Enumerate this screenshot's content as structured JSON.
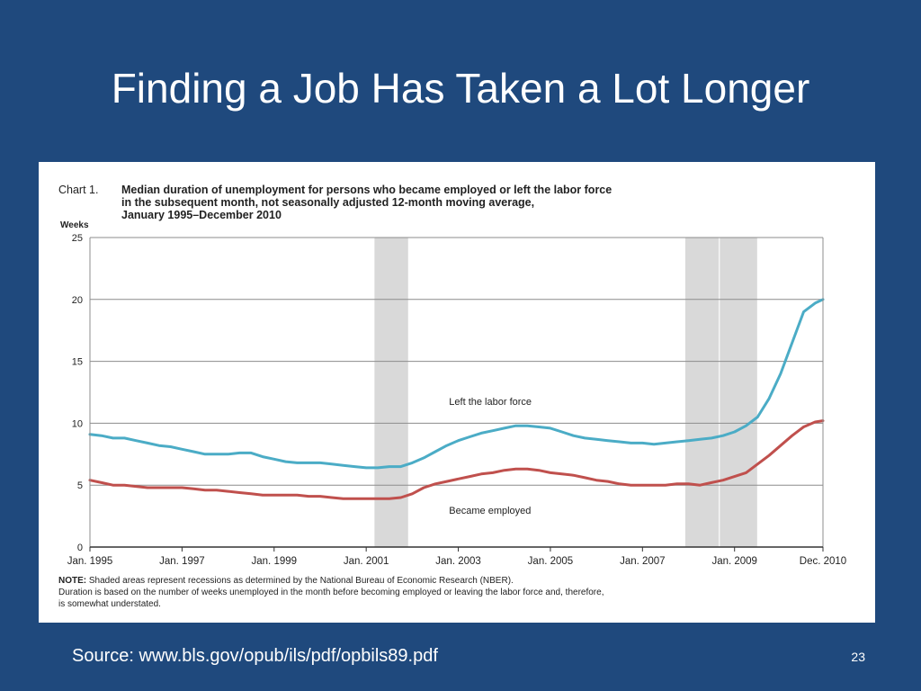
{
  "slide": {
    "title": "Finding a Job Has Taken a Lot Longer",
    "source": "Source: www.bls.gov/opub/ils/pdf/opbils89.pdf",
    "page_number": "23"
  },
  "chart_data": {
    "type": "line",
    "chart_label": "Chart 1.",
    "title_lines": [
      "Median duration of unemployment for persons who became employed or left the labor force",
      "in the subsequent month, not seasonally adjusted 12-month moving average,",
      "January 1995–December 2010"
    ],
    "ylabel": "Weeks",
    "ylim": [
      0,
      25
    ],
    "yticks": [
      0,
      5,
      10,
      15,
      20,
      25
    ],
    "xlim": [
      1995.0,
      2010.92
    ],
    "xticks": [
      {
        "value": 1995.0,
        "label": "Jan. 1995"
      },
      {
        "value": 1997.0,
        "label": "Jan. 1997"
      },
      {
        "value": 1999.0,
        "label": "Jan. 1999"
      },
      {
        "value": 2001.0,
        "label": "Jan. 2001"
      },
      {
        "value": 2003.0,
        "label": "Jan. 2003"
      },
      {
        "value": 2005.0,
        "label": "Jan. 2005"
      },
      {
        "value": 2007.0,
        "label": "Jan. 2007"
      },
      {
        "value": 2009.0,
        "label": "Jan. 2009"
      },
      {
        "value": 2010.92,
        "label": "Dec. 2010"
      }
    ],
    "grid": true,
    "recessions": [
      {
        "start": 2001.17,
        "end": 2001.92
      },
      {
        "start": 2007.92,
        "end": 2008.67
      },
      {
        "start": 2008.67,
        "end": 2009.5
      }
    ],
    "series": [
      {
        "name": "Left the labor force",
        "color": "#4bacc6",
        "label_position": {
          "x": 2002.8,
          "y": 11.5
        },
        "points": [
          [
            1995.0,
            9.1
          ],
          [
            1995.25,
            9.0
          ],
          [
            1995.5,
            8.8
          ],
          [
            1995.75,
            8.8
          ],
          [
            1996.0,
            8.6
          ],
          [
            1996.25,
            8.4
          ],
          [
            1996.5,
            8.2
          ],
          [
            1996.75,
            8.1
          ],
          [
            1997.0,
            7.9
          ],
          [
            1997.25,
            7.7
          ],
          [
            1997.5,
            7.5
          ],
          [
            1997.75,
            7.5
          ],
          [
            1998.0,
            7.5
          ],
          [
            1998.25,
            7.6
          ],
          [
            1998.5,
            7.6
          ],
          [
            1998.75,
            7.3
          ],
          [
            1999.0,
            7.1
          ],
          [
            1999.25,
            6.9
          ],
          [
            1999.5,
            6.8
          ],
          [
            1999.75,
            6.8
          ],
          [
            2000.0,
            6.8
          ],
          [
            2000.25,
            6.7
          ],
          [
            2000.5,
            6.6
          ],
          [
            2000.75,
            6.5
          ],
          [
            2001.0,
            6.4
          ],
          [
            2001.25,
            6.4
          ],
          [
            2001.5,
            6.5
          ],
          [
            2001.75,
            6.5
          ],
          [
            2002.0,
            6.8
          ],
          [
            2002.25,
            7.2
          ],
          [
            2002.5,
            7.7
          ],
          [
            2002.75,
            8.2
          ],
          [
            2003.0,
            8.6
          ],
          [
            2003.25,
            8.9
          ],
          [
            2003.5,
            9.2
          ],
          [
            2003.75,
            9.4
          ],
          [
            2004.0,
            9.6
          ],
          [
            2004.25,
            9.8
          ],
          [
            2004.5,
            9.8
          ],
          [
            2004.75,
            9.7
          ],
          [
            2005.0,
            9.6
          ],
          [
            2005.25,
            9.3
          ],
          [
            2005.5,
            9.0
          ],
          [
            2005.75,
            8.8
          ],
          [
            2006.0,
            8.7
          ],
          [
            2006.25,
            8.6
          ],
          [
            2006.5,
            8.5
          ],
          [
            2006.75,
            8.4
          ],
          [
            2007.0,
            8.4
          ],
          [
            2007.25,
            8.3
          ],
          [
            2007.5,
            8.4
          ],
          [
            2007.75,
            8.5
          ],
          [
            2008.0,
            8.6
          ],
          [
            2008.25,
            8.7
          ],
          [
            2008.5,
            8.8
          ],
          [
            2008.75,
            9.0
          ],
          [
            2009.0,
            9.3
          ],
          [
            2009.25,
            9.8
          ],
          [
            2009.5,
            10.5
          ],
          [
            2009.75,
            12.0
          ],
          [
            2010.0,
            14.0
          ],
          [
            2010.25,
            16.5
          ],
          [
            2010.5,
            19.0
          ],
          [
            2010.75,
            19.7
          ],
          [
            2010.92,
            20.0
          ]
        ]
      },
      {
        "name": "Became employed",
        "color": "#c0504d",
        "label_position": {
          "x": 2002.8,
          "y": 2.7
        },
        "points": [
          [
            1995.0,
            5.4
          ],
          [
            1995.25,
            5.2
          ],
          [
            1995.5,
            5.0
          ],
          [
            1995.75,
            5.0
          ],
          [
            1996.0,
            4.9
          ],
          [
            1996.25,
            4.8
          ],
          [
            1996.5,
            4.8
          ],
          [
            1996.75,
            4.8
          ],
          [
            1997.0,
            4.8
          ],
          [
            1997.25,
            4.7
          ],
          [
            1997.5,
            4.6
          ],
          [
            1997.75,
            4.6
          ],
          [
            1998.0,
            4.5
          ],
          [
            1998.25,
            4.4
          ],
          [
            1998.5,
            4.3
          ],
          [
            1998.75,
            4.2
          ],
          [
            1999.0,
            4.2
          ],
          [
            1999.25,
            4.2
          ],
          [
            1999.5,
            4.2
          ],
          [
            1999.75,
            4.1
          ],
          [
            2000.0,
            4.1
          ],
          [
            2000.25,
            4.0
          ],
          [
            2000.5,
            3.9
          ],
          [
            2000.75,
            3.9
          ],
          [
            2001.0,
            3.9
          ],
          [
            2001.25,
            3.9
          ],
          [
            2001.5,
            3.9
          ],
          [
            2001.75,
            4.0
          ],
          [
            2002.0,
            4.3
          ],
          [
            2002.25,
            4.8
          ],
          [
            2002.5,
            5.1
          ],
          [
            2002.75,
            5.3
          ],
          [
            2003.0,
            5.5
          ],
          [
            2003.25,
            5.7
          ],
          [
            2003.5,
            5.9
          ],
          [
            2003.75,
            6.0
          ],
          [
            2004.0,
            6.2
          ],
          [
            2004.25,
            6.3
          ],
          [
            2004.5,
            6.3
          ],
          [
            2004.75,
            6.2
          ],
          [
            2005.0,
            6.0
          ],
          [
            2005.25,
            5.9
          ],
          [
            2005.5,
            5.8
          ],
          [
            2005.75,
            5.6
          ],
          [
            2006.0,
            5.4
          ],
          [
            2006.25,
            5.3
          ],
          [
            2006.5,
            5.1
          ],
          [
            2006.75,
            5.0
          ],
          [
            2007.0,
            5.0
          ],
          [
            2007.25,
            5.0
          ],
          [
            2007.5,
            5.0
          ],
          [
            2007.75,
            5.1
          ],
          [
            2008.0,
            5.1
          ],
          [
            2008.25,
            5.0
          ],
          [
            2008.5,
            5.2
          ],
          [
            2008.75,
            5.4
          ],
          [
            2009.0,
            5.7
          ],
          [
            2009.25,
            6.0
          ],
          [
            2009.5,
            6.7
          ],
          [
            2009.75,
            7.4
          ],
          [
            2010.0,
            8.2
          ],
          [
            2010.25,
            9.0
          ],
          [
            2010.5,
            9.7
          ],
          [
            2010.75,
            10.1
          ],
          [
            2010.92,
            10.2
          ]
        ]
      }
    ],
    "note_label": "NOTE:",
    "note_lines": [
      "Shaded areas represent recessions as determined by the National Bureau of Economic Research (NBER).",
      "Duration is based on the number of weeks unemployed in the month before becoming employed or leaving the labor force and, therefore,",
      "is somewhat understated."
    ]
  }
}
